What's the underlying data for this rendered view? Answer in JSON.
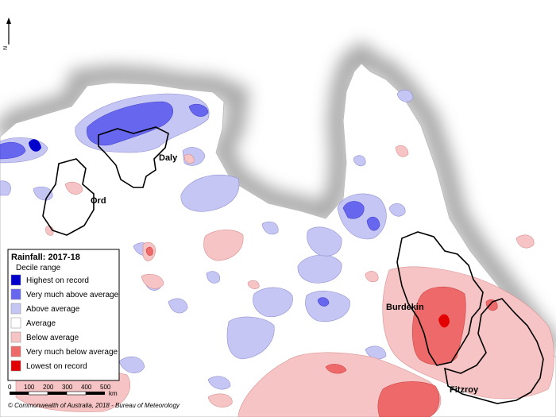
{
  "north_label": "N",
  "legend": {
    "title": "Rainfall: 2017-18",
    "subtitle": "Decile range",
    "items": [
      {
        "label": "Highest on record",
        "color": "#0000cc"
      },
      {
        "label": "Very much above average",
        "color": "#6666ee"
      },
      {
        "label": "Above average",
        "color": "#c6c6f5"
      },
      {
        "label": "Average",
        "color": "#ffffff"
      },
      {
        "label": "Below average",
        "color": "#f6c4c4"
      },
      {
        "label": "Very much below average",
        "color": "#ee6a6a"
      },
      {
        "label": "Lowest on record",
        "color": "#e20000"
      }
    ]
  },
  "basins": [
    {
      "name": "Daly"
    },
    {
      "name": "Ord"
    },
    {
      "name": "Burdekin"
    },
    {
      "name": "Fitzroy"
    }
  ],
  "scale_bar": {
    "ticks": [
      "0",
      "100",
      "200",
      "300",
      "400",
      "500"
    ],
    "unit": "km"
  },
  "credit": "© Commonwealth of Australia, 2018 - Bureau of Meteorology"
}
